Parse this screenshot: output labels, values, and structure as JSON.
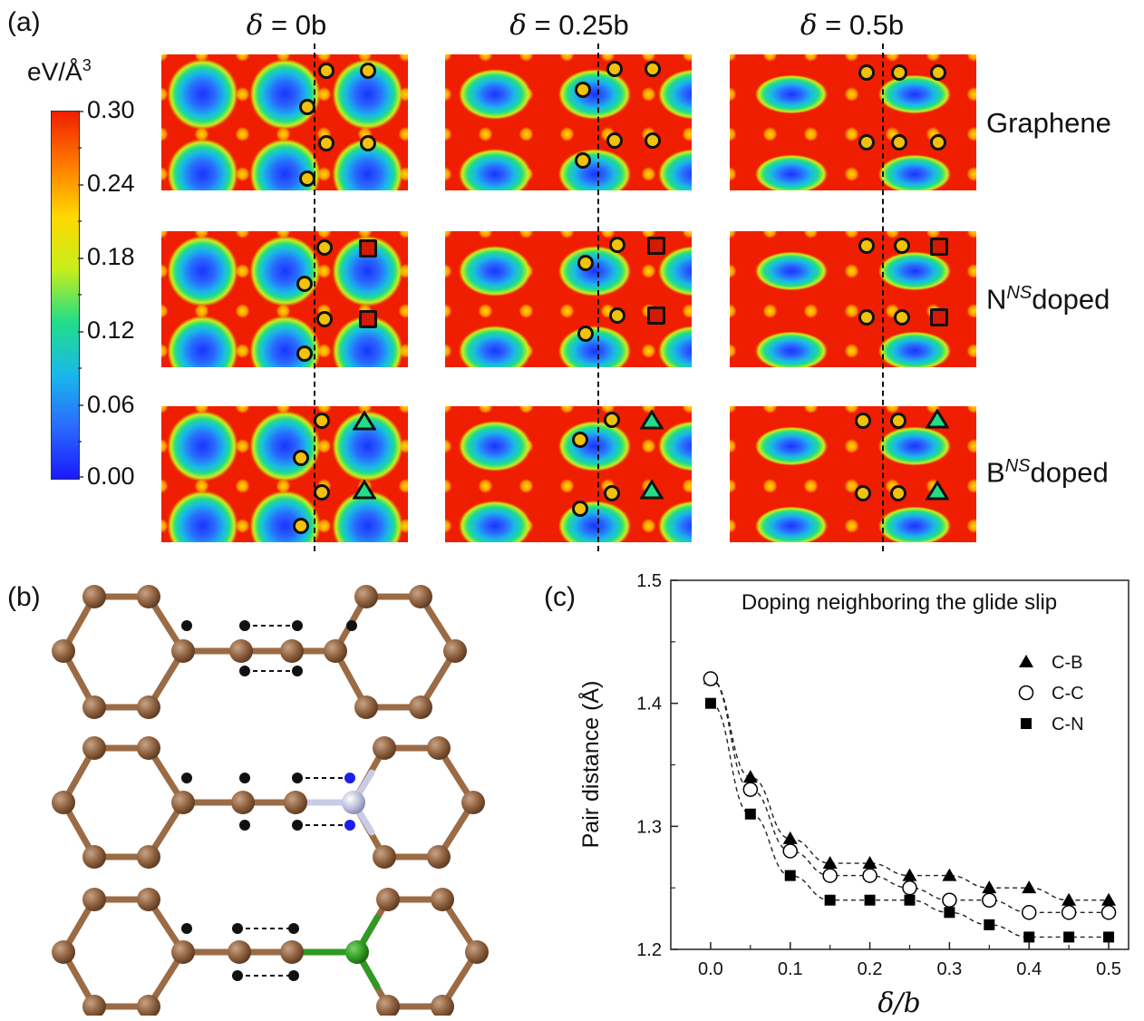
{
  "panel_a": {
    "letter": "(a)",
    "col_titles": [
      {
        "sym": "δ",
        "rest": " = 0b"
      },
      {
        "sym": "δ",
        "rest": " = 0.25b"
      },
      {
        "sym": "δ",
        "rest": " = 0.5b"
      }
    ],
    "rows": [
      {
        "base": "Graphene",
        "sup": "",
        "tail": ""
      },
      {
        "base": "N",
        "sup": "NS",
        "tail": "doped"
      },
      {
        "base": "B",
        "sup": "NS",
        "tail": "doped"
      }
    ],
    "colorbar": {
      "unit_base": "eV/Å",
      "unit_sup": "3",
      "ticks": [
        "0.30",
        "0.24",
        "0.18",
        "0.12",
        "0.06",
        "0.00"
      ],
      "colors": [
        "#f01e00",
        "#ff7a00",
        "#ffd800",
        "#c8ee1a",
        "#22dd88",
        "#19b9e8",
        "#2a6bff",
        "#1a1aff"
      ]
    }
  },
  "panel_b": {
    "letter": "(b)"
  },
  "panel_c": {
    "letter": "(c)"
  },
  "chart_data": {
    "type": "scatter",
    "title": "Doping neighboring the glide slip",
    "xlabel_sym": "δ",
    "xlabel_rest": "/b",
    "ylabel": "Pair distance (Å)",
    "xlim": [
      -0.05,
      0.525
    ],
    "ylim": [
      1.2,
      1.5
    ],
    "xticks": [
      "0.0",
      "0.1",
      "0.2",
      "0.3",
      "0.4",
      "0.5"
    ],
    "yticks": [
      "1.2",
      "1.3",
      "1.4",
      "1.5"
    ],
    "x": [
      0.0,
      0.05,
      0.1,
      0.15,
      0.2,
      0.25,
      0.3,
      0.35,
      0.4,
      0.45,
      0.5
    ],
    "legend_position": "top-right",
    "series": [
      {
        "name": "C-B",
        "marker": "triangle-filled",
        "values": [
          1.42,
          1.34,
          1.29,
          1.27,
          1.27,
          1.26,
          1.26,
          1.25,
          1.25,
          1.24,
          1.24
        ]
      },
      {
        "name": "C-C",
        "marker": "circle-open",
        "values": [
          1.42,
          1.33,
          1.28,
          1.26,
          1.26,
          1.25,
          1.24,
          1.24,
          1.23,
          1.23,
          1.23
        ]
      },
      {
        "name": "C-N",
        "marker": "square-filled",
        "values": [
          1.4,
          1.31,
          1.26,
          1.24,
          1.24,
          1.24,
          1.23,
          1.22,
          1.21,
          1.21,
          1.21
        ]
      }
    ]
  }
}
